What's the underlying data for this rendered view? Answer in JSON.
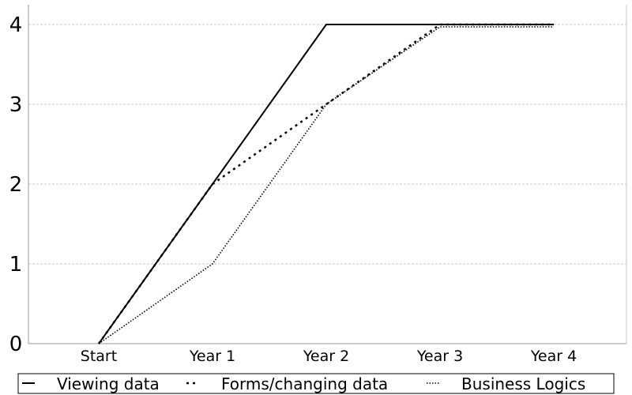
{
  "chart_data": {
    "type": "line",
    "title": "",
    "xlabel": "",
    "ylabel": "",
    "categories": [
      "Start",
      "Year 1",
      "Year 2",
      "Year 3",
      "Year 4"
    ],
    "ylim": [
      0,
      4
    ],
    "yticks": [
      "0",
      "1",
      "2",
      "3",
      "4"
    ],
    "grid": "horizontal dashed",
    "legend_position": "bottom",
    "series": [
      {
        "name": "Viewing data",
        "values": [
          0,
          2,
          4,
          4,
          4
        ],
        "style": "solid",
        "color": "#000000"
      },
      {
        "name": "Forms/changing data",
        "values": [
          0,
          2,
          3,
          4,
          4
        ],
        "style": "dotted",
        "color": "#000000"
      },
      {
        "name": "Business Logics",
        "values": [
          0,
          1,
          3,
          4,
          4
        ],
        "style": "fine-dotted",
        "color": "#000000"
      }
    ]
  }
}
